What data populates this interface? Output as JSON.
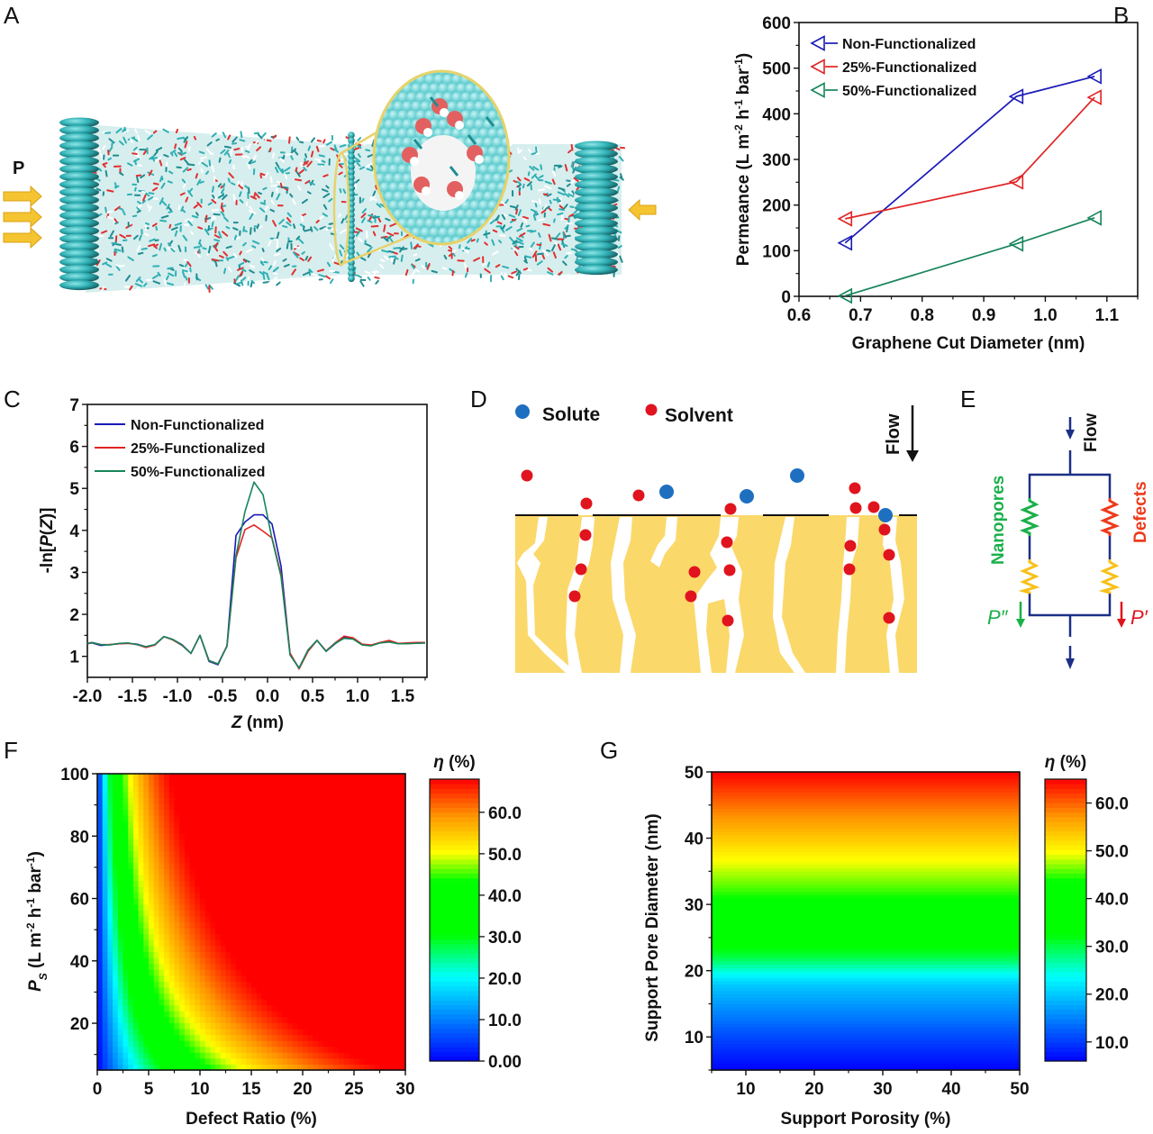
{
  "panels": {
    "A": {
      "letter": "A",
      "pressure_label": "P",
      "colors": {
        "graphene": "#2fb0b4",
        "oxygen": "#e03030",
        "hydrogen": "#ffffff",
        "arrow": "#f5c431",
        "zoom_ring": "#e7d26a"
      }
    },
    "B": {
      "letter": "B"
    },
    "C": {
      "letter": "C"
    },
    "D": {
      "letter": "D",
      "legend": [
        {
          "label": "Solute",
          "color": "#1f6fc1"
        },
        {
          "label": "Solvent",
          "color": "#e0141e"
        }
      ],
      "flow_label": "Flow",
      "support_color": "#fbd86a"
    },
    "E": {
      "letter": "E",
      "flow_label": "Flow",
      "nanopores_label": "Nanopores",
      "defects_label": "Defects",
      "p_double_prime": "P″",
      "p_prime": "P′",
      "colors": {
        "wire": "#1c2f86",
        "nanopores": "#1ab04a",
        "defects": "#ee3b1c",
        "support": "#f6c11b"
      }
    },
    "F": {
      "letter": "F"
    },
    "G": {
      "letter": "G"
    }
  },
  "chart_data": [
    {
      "id": "B",
      "type": "line",
      "title": "",
      "xlabel": "Graphene Cut Diameter (nm)",
      "ylabel": "Permeance (L m⁻² h⁻¹ bar⁻¹)",
      "ylabel_parts": [
        "Permeance (L m",
        "-2",
        " h",
        "-1",
        " bar",
        "-1",
        ")"
      ],
      "xlim": [
        0.6,
        1.15
      ],
      "ylim": [
        0,
        600
      ],
      "xticks": [
        0.6,
        0.7,
        0.8,
        0.9,
        1.0,
        1.1
      ],
      "xtick_labels": [
        "0.6",
        "0.7",
        "0.8",
        "0.9",
        "1.0",
        "1.1"
      ],
      "yticks": [
        0,
        100,
        200,
        300,
        400,
        500,
        600
      ],
      "ytick_labels": [
        "0",
        "100",
        "200",
        "300",
        "400",
        "500",
        "600"
      ],
      "legend_position": "top-left",
      "marker": "left-triangle-open",
      "x": [
        0.675,
        0.953,
        1.08
      ],
      "series": [
        {
          "name": "Non-Functionalized",
          "color": "#1a1ab8",
          "values": [
            117,
            438,
            482
          ]
        },
        {
          "name": "25%-Functionalized",
          "color": "#e02424",
          "values": [
            170,
            251,
            436
          ]
        },
        {
          "name": "50%-Functionalized",
          "color": "#17855a",
          "values": [
            1,
            115,
            172
          ]
        }
      ]
    },
    {
      "id": "C",
      "type": "line",
      "title": "",
      "xlabel": "Z (nm)",
      "xlabel_italic": "Z",
      "xlabel_rest": " (nm)",
      "ylabel": "-ln[P(Z)]",
      "xlim": [
        -2.0,
        1.77
      ],
      "ylim": [
        0.5,
        7
      ],
      "xticks": [
        -2.0,
        -1.5,
        -1.0,
        -0.5,
        0.0,
        0.5,
        1.0,
        1.5
      ],
      "xtick_labels": [
        "-2.0",
        "-1.5",
        "-1.0",
        "-0.5",
        "0.0",
        "0.5",
        "1.0",
        "1.5"
      ],
      "yticks": [
        1,
        2,
        3,
        4,
        5,
        6,
        7
      ],
      "ytick_labels": [
        "1",
        "2",
        "3",
        "4",
        "5",
        "6",
        "7"
      ],
      "legend_position": "top-left",
      "x": [
        -2.0,
        -1.95,
        -1.85,
        -1.75,
        -1.65,
        -1.55,
        -1.45,
        -1.35,
        -1.25,
        -1.15,
        -1.05,
        -0.95,
        -0.85,
        -0.75,
        -0.65,
        -0.55,
        -0.45,
        -0.35,
        -0.25,
        -0.15,
        -0.05,
        0.05,
        0.15,
        0.25,
        0.35,
        0.45,
        0.55,
        0.65,
        0.75,
        0.85,
        0.95,
        1.05,
        1.15,
        1.25,
        1.35,
        1.45,
        1.55,
        1.65,
        1.75
      ],
      "series": [
        {
          "name": "Non-Functionalized",
          "color": "#1a1ab8",
          "values": [
            1.3,
            1.32,
            1.26,
            1.28,
            1.3,
            1.31,
            1.29,
            1.23,
            1.28,
            1.47,
            1.4,
            1.28,
            1.07,
            1.5,
            0.88,
            0.8,
            1.25,
            3.88,
            4.2,
            4.37,
            4.37,
            4.15,
            3.15,
            1.05,
            0.72,
            1.15,
            1.38,
            1.12,
            1.3,
            1.45,
            1.42,
            1.28,
            1.26,
            1.32,
            1.36,
            1.3,
            1.31,
            1.31,
            1.32
          ]
        },
        {
          "name": "25%-Functionalized",
          "color": "#e02424",
          "values": [
            1.31,
            1.33,
            1.28,
            1.28,
            1.3,
            1.31,
            1.28,
            1.21,
            1.27,
            1.47,
            1.39,
            1.26,
            1.07,
            1.5,
            0.9,
            0.82,
            1.25,
            3.35,
            4.02,
            4.13,
            3.98,
            3.82,
            2.95,
            1.08,
            0.7,
            1.12,
            1.38,
            1.13,
            1.32,
            1.48,
            1.44,
            1.29,
            1.27,
            1.33,
            1.38,
            1.31,
            1.32,
            1.33,
            1.33
          ]
        },
        {
          "name": "50%-Functionalized",
          "color": "#17855a",
          "values": [
            1.3,
            1.33,
            1.28,
            1.27,
            1.31,
            1.32,
            1.28,
            1.23,
            1.28,
            1.47,
            1.4,
            1.27,
            1.07,
            1.5,
            0.9,
            0.82,
            1.24,
            3.4,
            4.45,
            5.15,
            4.85,
            3.8,
            2.9,
            1.03,
            0.72,
            1.15,
            1.38,
            1.12,
            1.31,
            1.43,
            1.41,
            1.27,
            1.25,
            1.32,
            1.34,
            1.3,
            1.3,
            1.31,
            1.32
          ]
        }
      ]
    },
    {
      "id": "F",
      "type": "heatmap",
      "title": "",
      "xlabel": "Defect Ratio (%)",
      "ylabel": "P_S (L m⁻² h⁻¹ bar⁻¹)",
      "ylabel_parts": [
        "P",
        "S",
        " (L m",
        "-2",
        " h",
        "-1",
        " bar",
        "-1",
        ")"
      ],
      "xlim": [
        0,
        30
      ],
      "ylim": [
        5,
        100
      ],
      "xticks": [
        0,
        5,
        10,
        15,
        20,
        25,
        30
      ],
      "xtick_labels": [
        "0",
        "5",
        "10",
        "15",
        "20",
        "25",
        "30"
      ],
      "yticks": [
        20,
        40,
        60,
        80,
        100
      ],
      "ytick_labels": [
        "20",
        "40",
        "60",
        "80",
        "100"
      ],
      "colorbar": {
        "title": "η (%)",
        "range": [
          0,
          68
        ],
        "ticks": [
          0,
          10,
          20,
          30,
          40,
          50,
          60
        ],
        "tick_labels": [
          "0.00",
          "10.0",
          "20.0",
          "30.0",
          "40.0",
          "50.0",
          "60.0"
        ],
        "colormap": [
          "#0000ff",
          "#00ffff",
          "#00ff00",
          "#00ff00",
          "#ffff00",
          "#ff0000"
        ]
      },
      "model": "eta increases with defect ratio and with P_S; ~0 at x=0, ~68 at (30,100), ~40 at (30,20)"
    },
    {
      "id": "G",
      "type": "heatmap",
      "title": "",
      "xlabel": "Support Porosity (%)",
      "ylabel": "Support Pore Diameter (nm)",
      "xlim": [
        5,
        50
      ],
      "ylim": [
        5,
        50
      ],
      "xticks": [
        10,
        20,
        30,
        40,
        50
      ],
      "xtick_labels": [
        "10",
        "20",
        "30",
        "40",
        "50"
      ],
      "yticks": [
        10,
        20,
        30,
        40,
        50
      ],
      "ytick_labels": [
        "10",
        "20",
        "30",
        "40",
        "50"
      ],
      "colorbar": {
        "title": "η (%)",
        "range": [
          6,
          65
        ],
        "ticks": [
          10,
          20,
          30,
          40,
          50,
          60
        ],
        "tick_labels": [
          "10.0",
          "20.0",
          "30.0",
          "40.0",
          "50.0",
          "60.0"
        ],
        "colormap": [
          "#0000ff",
          "#00ffff",
          "#00ff00",
          "#00ff00",
          "#ffff00",
          "#ff0000"
        ]
      },
      "model": "eta depends only on pore diameter: ~6 at 5 nm, ~20 at 18 nm, ~40 at 28 nm, ~50 at 37 nm, ~65 at 50 nm"
    }
  ]
}
